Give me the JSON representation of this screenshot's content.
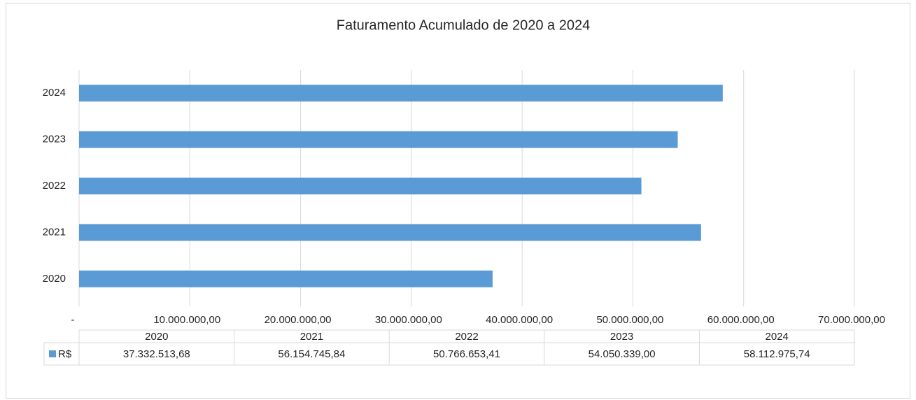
{
  "chart_data": {
    "type": "bar",
    "orientation": "horizontal",
    "title": "Faturamento Acumulado de 2020 a 2024",
    "categories": [
      "2020",
      "2021",
      "2022",
      "2023",
      "2024"
    ],
    "series": [
      {
        "name": "R$",
        "color": "#5b9bd5",
        "values": [
          37332513.68,
          56154745.84,
          50766653.41,
          54050339.0,
          58112975.74
        ],
        "value_labels": [
          "37.332.513,68",
          "56.154.745,84",
          "50.766.653,41",
          "54.050.339,00",
          "58.112.975,74"
        ]
      }
    ],
    "xlim": [
      0,
      70000000
    ],
    "xticks": [
      {
        "value": 0,
        "label": "-"
      },
      {
        "value": 10000000,
        "label": "10.000.000,00"
      },
      {
        "value": 20000000,
        "label": "20.000.000,00"
      },
      {
        "value": 30000000,
        "label": "30.000.000,00"
      },
      {
        "value": 40000000,
        "label": "40.000.000,00"
      },
      {
        "value": 50000000,
        "label": "50.000.000,00"
      },
      {
        "value": 60000000,
        "label": "60.000.000,00"
      },
      {
        "value": 70000000,
        "label": "70.000.000,00"
      }
    ],
    "grid": true,
    "data_table": true
  }
}
